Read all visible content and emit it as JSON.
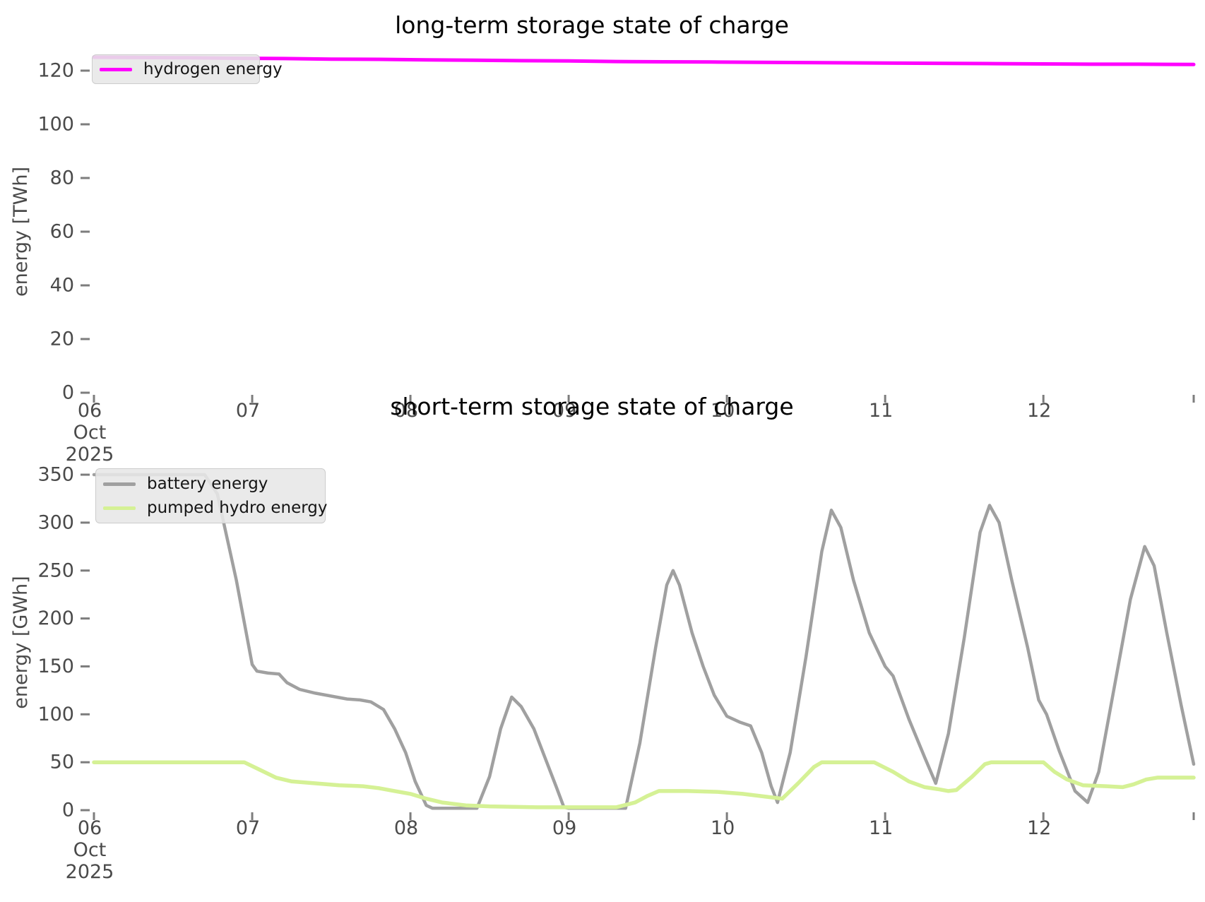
{
  "figure": {
    "background": "#ffffff",
    "tick_color": "#4a4a4a"
  },
  "chart_data": [
    {
      "type": "line",
      "title": "long-term storage state of charge",
      "ylabel": "energy [TWh]",
      "xlabel": "",
      "grid": false,
      "legend_position": "upper left",
      "x_axis": {
        "xlim": [
          6,
          12.95
        ],
        "ticks": [
          {
            "v": 6,
            "label": "06",
            "sub": [
              "Oct",
              "2025"
            ]
          },
          {
            "v": 7,
            "label": "07"
          },
          {
            "v": 8,
            "label": "08"
          },
          {
            "v": 9,
            "label": "09"
          },
          {
            "v": 10,
            "label": "10"
          },
          {
            "v": 11,
            "label": "11"
          },
          {
            "v": 12,
            "label": "12"
          },
          {
            "v": 12.95,
            "label": ""
          }
        ]
      },
      "y_axis": {
        "ticks": [
          0,
          20,
          40,
          60,
          80,
          100,
          120
        ],
        "ylim": [
          0,
          128
        ]
      },
      "series": [
        {
          "id": "hydrogen-energy",
          "name": "hydrogen energy",
          "color": "#ff00ff",
          "width": 5,
          "x": [
            6.0,
            6.3,
            6.6,
            6.9,
            7.2,
            7.5,
            7.8,
            8.1,
            8.4,
            8.7,
            9.0,
            9.3,
            9.6,
            9.9,
            10.2,
            10.5,
            10.8,
            11.1,
            11.4,
            11.7,
            12.0,
            12.3,
            12.6,
            12.95
          ],
          "y": [
            125.0,
            124.9,
            124.8,
            124.6,
            124.5,
            124.3,
            124.2,
            124.0,
            123.9,
            123.7,
            123.6,
            123.4,
            123.3,
            123.2,
            123.1,
            123.0,
            122.9,
            122.8,
            122.7,
            122.6,
            122.5,
            122.4,
            122.4,
            122.3
          ]
        }
      ]
    },
    {
      "type": "line",
      "title": "short-term storage state of charge",
      "ylabel": "energy [GWh]",
      "xlabel": "",
      "grid": false,
      "legend_position": "upper left",
      "x_axis": {
        "xlim": [
          6,
          12.95
        ],
        "ticks": [
          {
            "v": 6,
            "label": "06",
            "sub": [
              "Oct",
              "2025"
            ]
          },
          {
            "v": 7,
            "label": "07"
          },
          {
            "v": 8,
            "label": "08"
          },
          {
            "v": 9,
            "label": "09"
          },
          {
            "v": 10,
            "label": "10"
          },
          {
            "v": 11,
            "label": "11"
          },
          {
            "v": 12,
            "label": "12"
          },
          {
            "v": 12.95,
            "label": ""
          }
        ]
      },
      "y_axis": {
        "ticks": [
          0,
          50,
          100,
          150,
          200,
          250,
          300,
          350
        ],
        "ylim": [
          0,
          350
        ]
      },
      "series": [
        {
          "id": "battery-energy",
          "name": "battery energy",
          "color": "#a0a0a0",
          "width": 4.5,
          "x": [
            6.0,
            6.7,
            6.78,
            6.9,
            7.0,
            7.03,
            7.1,
            7.17,
            7.22,
            7.3,
            7.4,
            7.5,
            7.6,
            7.68,
            7.75,
            7.83,
            7.9,
            7.97,
            8.03,
            8.1,
            8.14,
            8.42,
            8.5,
            8.57,
            8.64,
            8.7,
            8.78,
            8.85,
            8.92,
            8.97,
            9.0,
            9.36,
            9.45,
            9.55,
            9.62,
            9.66,
            9.7,
            9.78,
            9.85,
            9.92,
            10.0,
            10.08,
            10.15,
            10.22,
            10.28,
            10.32,
            10.4,
            10.5,
            10.6,
            10.66,
            10.72,
            10.8,
            10.9,
            11.0,
            11.05,
            11.15,
            11.25,
            11.32,
            11.4,
            11.5,
            11.6,
            11.66,
            11.72,
            11.8,
            11.9,
            11.97,
            12.02,
            12.1,
            12.2,
            12.28,
            12.35,
            12.45,
            12.55,
            12.64,
            12.7,
            12.78,
            12.87,
            12.95
          ],
          "y": [
            350,
            350,
            330,
            240,
            152,
            145,
            143,
            142,
            133,
            126,
            122,
            119,
            116,
            115,
            113,
            105,
            85,
            60,
            30,
            5,
            2,
            2,
            35,
            85,
            118,
            108,
            85,
            55,
            25,
            3,
            2,
            2,
            70,
            170,
            235,
            250,
            235,
            185,
            150,
            120,
            98,
            92,
            88,
            60,
            25,
            8,
            60,
            160,
            270,
            313,
            295,
            240,
            185,
            150,
            140,
            95,
            55,
            28,
            80,
            180,
            290,
            318,
            300,
            240,
            170,
            115,
            100,
            62,
            20,
            8,
            40,
            130,
            220,
            275,
            255,
            185,
            110,
            48
          ]
        },
        {
          "id": "pumped-hydro-energy",
          "name": "pumped hydro energy",
          "color": "#d5f195",
          "width": 5.5,
          "x": [
            6.0,
            6.95,
            7.05,
            7.15,
            7.25,
            7.4,
            7.55,
            7.7,
            7.8,
            7.9,
            8.0,
            8.1,
            8.2,
            8.35,
            8.5,
            8.8,
            9.3,
            9.42,
            9.5,
            9.57,
            9.75,
            9.95,
            10.1,
            10.25,
            10.35,
            10.45,
            10.55,
            10.6,
            10.93,
            11.05,
            11.15,
            11.25,
            11.33,
            11.4,
            11.45,
            11.55,
            11.63,
            11.67,
            12.0,
            12.07,
            12.15,
            12.25,
            12.4,
            12.5,
            12.57,
            12.65,
            12.72,
            12.95
          ],
          "y": [
            50,
            50,
            42,
            34,
            30,
            28,
            26,
            25,
            23,
            20,
            17,
            12,
            8,
            5,
            4,
            3,
            3,
            8,
            15,
            20,
            20,
            19,
            17,
            14,
            12,
            28,
            45,
            50,
            50,
            40,
            30,
            24,
            22,
            20,
            21,
            35,
            48,
            50,
            50,
            40,
            32,
            26,
            25,
            24,
            27,
            32,
            34,
            34
          ]
        }
      ]
    }
  ]
}
